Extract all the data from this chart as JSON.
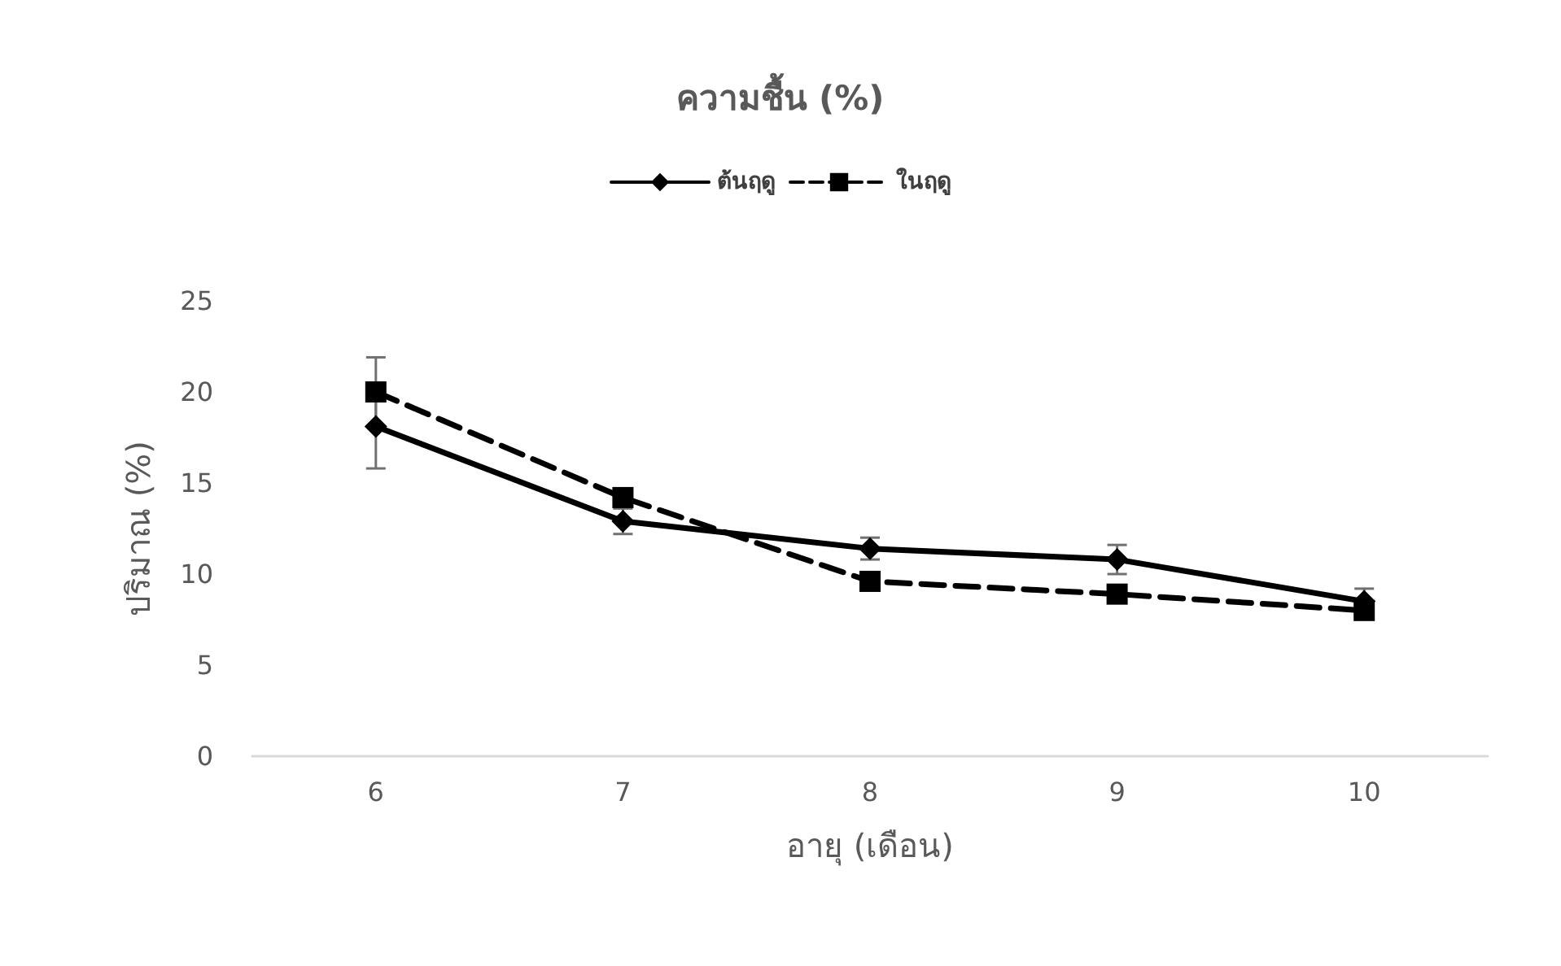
{
  "chart_data": {
    "type": "line",
    "title": "ความชื้น (%)",
    "xlabel": "อายุ (เดือน)",
    "ylabel": "ปริมาณ (%)",
    "categories": [
      "6",
      "7",
      "8",
      "9",
      "10"
    ],
    "series": [
      {
        "name": "ต้นฤดู",
        "color": "#000000",
        "marker": "diamond",
        "line_style": "solid",
        "values": [
          18.1,
          12.9,
          11.4,
          10.8,
          8.5
        ],
        "errors": [
          2.3,
          0.7,
          0.6,
          0.8,
          0.7
        ]
      },
      {
        "name": "ในฤดู",
        "color": "#000000",
        "marker": "square",
        "line_style": "dashed",
        "values": [
          20.0,
          14.2,
          9.6,
          8.9,
          8.0
        ],
        "errors": [
          1.9,
          null,
          null,
          null,
          null
        ]
      }
    ],
    "ylim": [
      0,
      25
    ],
    "yticks": [
      0,
      5,
      10,
      15,
      20,
      25
    ],
    "grid": false,
    "legend": "top"
  }
}
